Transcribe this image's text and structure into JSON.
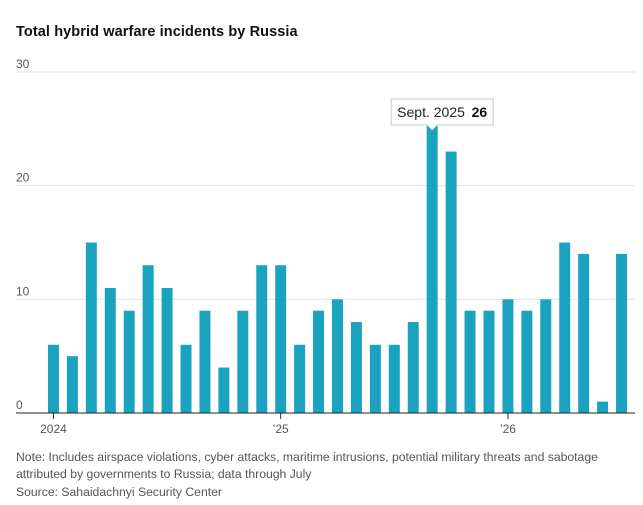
{
  "chart_data": {
    "type": "bar",
    "title": "Total hybrid warfare incidents by Russia",
    "x": [
      "2024-01",
      "2024-02",
      "2024-03",
      "2024-04",
      "2024-05",
      "2024-06",
      "2024-07",
      "2024-08",
      "2024-09",
      "2024-10",
      "2024-11",
      "2024-12",
      "2025-01",
      "2025-02",
      "2025-03",
      "2025-04",
      "2025-05",
      "2025-06",
      "2025-07",
      "2025-08",
      "2025-09",
      "2025-10",
      "2025-11",
      "2025-12",
      "2026-01",
      "2026-02",
      "2026-03",
      "2026-04",
      "2026-05",
      "2026-06",
      "2026-07"
    ],
    "values": [
      6,
      5,
      15,
      11,
      9,
      13,
      11,
      6,
      9,
      4,
      9,
      13,
      13,
      6,
      9,
      10,
      8,
      6,
      6,
      8,
      26,
      23,
      9,
      9,
      10,
      9,
      10,
      15,
      14,
      1,
      14
    ],
    "bar_color": "#1aa3bf",
    "ylim": [
      0,
      30
    ],
    "yticks": [
      0,
      10,
      20,
      30
    ],
    "xticks": [
      {
        "x": "2024-01",
        "label": "2024"
      },
      {
        "x": "2025-01",
        "label": "’25"
      },
      {
        "x": "2026-01",
        "label": "’26"
      }
    ],
    "grid": true,
    "tooltip": {
      "x": "2025-09",
      "label": "Sept. 2025",
      "value": "26"
    }
  },
  "note": "Note: Includes airspace violations, cyber attacks, maritime intrusions, potential military threats and sabotage attributed by governments to Russia; data through July",
  "source": "Source: Sahaidachnyi Security Center"
}
